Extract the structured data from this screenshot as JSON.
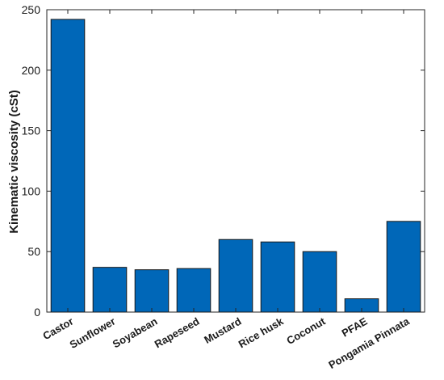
{
  "chart_data": {
    "type": "bar",
    "title": "",
    "xlabel": "",
    "ylabel": "Kinematic viscosity (cSt)",
    "categories": [
      "Castor",
      "Sunflower",
      "Soyabean",
      "Rapeseed",
      "Mustard",
      "Rice husk",
      "Coconut",
      "PFAE",
      "Pongamia Pinnata"
    ],
    "values": [
      242,
      37,
      35,
      36,
      60,
      58,
      50,
      11,
      75
    ],
    "ylim": [
      0,
      250
    ],
    "yticks": [
      0,
      50,
      100,
      150,
      200,
      250
    ],
    "grid": false,
    "bar_color": "#0067b8",
    "bar_edge_color": "#1a1a1a"
  }
}
